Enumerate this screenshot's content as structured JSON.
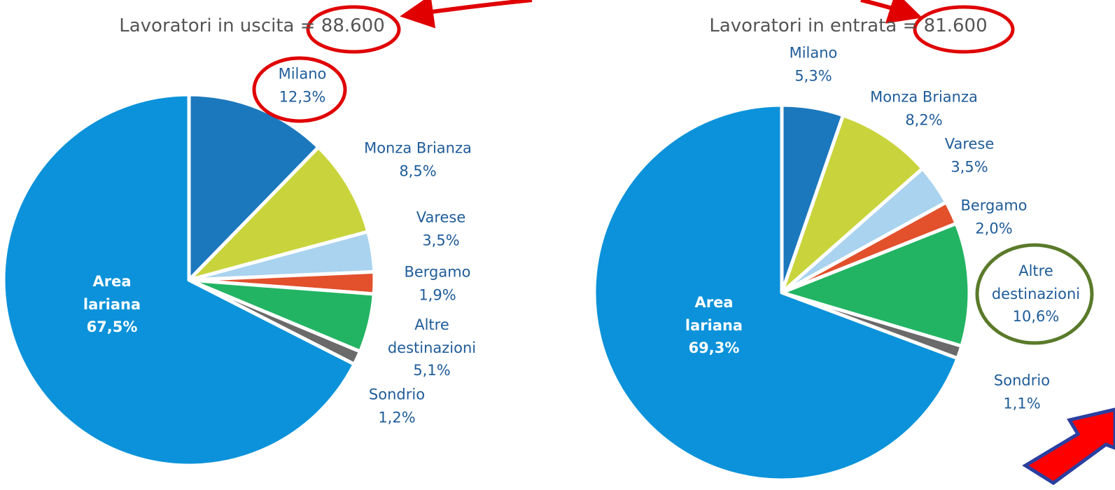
{
  "chart_data": [
    {
      "type": "pie",
      "title": "Lavoratori in uscita = 88.600",
      "categories": [
        "Milano",
        "Monza Brianza",
        "Varese",
        "Bergamo",
        "Altre destinazioni",
        "Sondrio",
        "Area lariana"
      ],
      "values": [
        12.3,
        8.5,
        3.5,
        1.9,
        5.1,
        1.2,
        67.5
      ],
      "value_labels": [
        "12,3%",
        "8,5%",
        "3,5%",
        "1,9%",
        "5,1%",
        "1,2%",
        "67,5%"
      ],
      "colors": [
        "#1c78bd",
        "#c9d43c",
        "#a9d3ef",
        "#e2502c",
        "#22b463",
        "#6a6a6a",
        "#0b92da"
      ]
    },
    {
      "type": "pie",
      "title": "Lavoratori in entrata = 81.600",
      "categories": [
        "Milano",
        "Monza Brianza",
        "Varese",
        "Bergamo",
        "Altre destinazioni",
        "Sondrio",
        "Area lariana"
      ],
      "values": [
        5.3,
        8.2,
        3.5,
        2.0,
        10.6,
        1.1,
        69.3
      ],
      "value_labels": [
        "5,3%",
        "8,2%",
        "3,5%",
        "2,0%",
        "10,6%",
        "1,1%",
        "69,3%"
      ],
      "colors": [
        "#1c78bd",
        "#c9d43c",
        "#a9d3ef",
        "#e2502c",
        "#22b463",
        "#6a6a6a",
        "#0b92da"
      ]
    }
  ]
}
